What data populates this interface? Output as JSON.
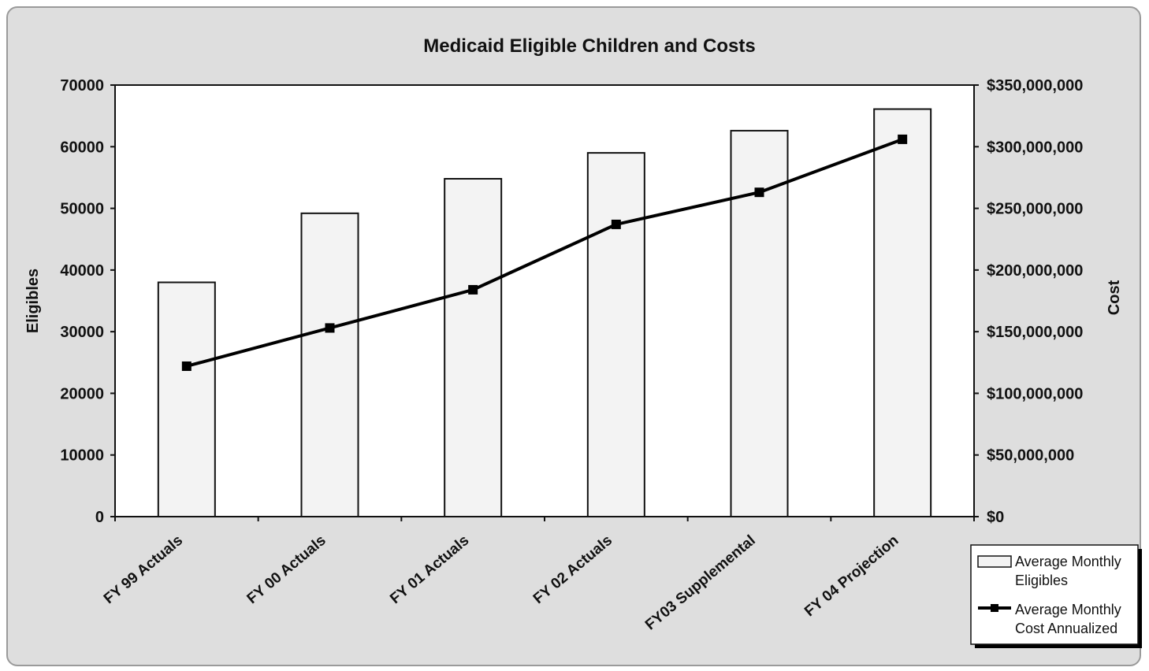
{
  "chart_data": {
    "type": "bar",
    "title": "Medicaid Eligible Children and Costs",
    "categories": [
      "FY 99 Actuals",
      "FY 00 Actuals",
      "FY 01 Actuals",
      "FY 02 Actuals",
      "FY03 Supplemental",
      "FY 04 Projection"
    ],
    "series": [
      {
        "name": "Average Monthly Eligibles",
        "type": "bar",
        "axis": "left",
        "values": [
          38000,
          49200,
          54800,
          59000,
          62600,
          66100
        ]
      },
      {
        "name": "Average Monthly Cost Annualized",
        "type": "line",
        "axis": "right",
        "values": [
          122000000,
          153000000,
          184000000,
          237000000,
          263000000,
          306000000
        ]
      }
    ],
    "ylabel": "Eligibles",
    "ylabel_right": "Cost",
    "ylim": [
      0,
      70000
    ],
    "ylim_right": [
      0,
      350000000
    ],
    "yticks": [
      "0",
      "10000",
      "20000",
      "30000",
      "40000",
      "50000",
      "60000",
      "70000"
    ],
    "yticks_right": [
      "$0",
      "$50,000,000",
      "$100,000,000",
      "$150,000,000",
      "$200,000,000",
      "$250,000,000",
      "$300,000,000",
      "$350,000,000"
    ],
    "legend": {
      "placement": "bottom-right",
      "bar_label_lines": [
        "Average Monthly",
        "Eligibles"
      ],
      "line_label_lines": [
        "Average Monthly",
        "Cost Annualized"
      ]
    },
    "grid": false,
    "colors": {
      "bar_fill": "#f3f3f3",
      "bar_stroke": "#111111",
      "line": "#000000",
      "plot_bg": "#ffffff",
      "frame_bg": "#dedede"
    }
  }
}
